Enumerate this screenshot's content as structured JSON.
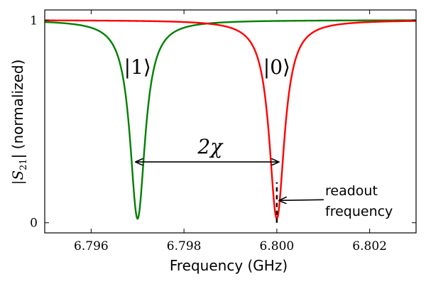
{
  "chart_data": {
    "type": "line",
    "xlabel": "Frequency (GHz)",
    "ylabel": "|S21| (normalized)",
    "ylabel_parts": {
      "pre": "|S",
      "sub": "21",
      "post": "| (normalized)"
    },
    "xlim": [
      6.795,
      6.803
    ],
    "ylim": [
      -0.05,
      1.05
    ],
    "x_ticks": [
      6.796,
      6.798,
      6.8,
      6.802
    ],
    "x_tick_labels": [
      "6.796",
      "6.798",
      "6.800",
      "6.802"
    ],
    "y_ticks": [
      0,
      1
    ],
    "y_tick_labels": [
      "0",
      "1"
    ],
    "grid": false,
    "series": [
      {
        "name": "|1⟩",
        "color": "#008000",
        "center": 6.797,
        "halfwidth": 0.0002,
        "min": 0.02
      },
      {
        "name": "|0⟩",
        "color": "#ff0000",
        "center": 6.8,
        "halfwidth": 0.0002,
        "min": 0.02
      }
    ],
    "series_label_values": {
      "state1": {
        "x": 6.797,
        "y": 0.77
      },
      "state0": {
        "x": 6.8,
        "y": 0.77
      }
    },
    "annotations": {
      "chi_label": "2χ",
      "chi_arrow": {
        "x_from": 6.797,
        "x_to": 6.8,
        "y": 0.3
      },
      "readout_label_line1": "readout",
      "readout_label_line2": "frequency",
      "readout_marker": {
        "x": 6.8,
        "y_from": 0.0,
        "y_to": 0.2
      },
      "readout_arrow_y": 0.11
    }
  }
}
